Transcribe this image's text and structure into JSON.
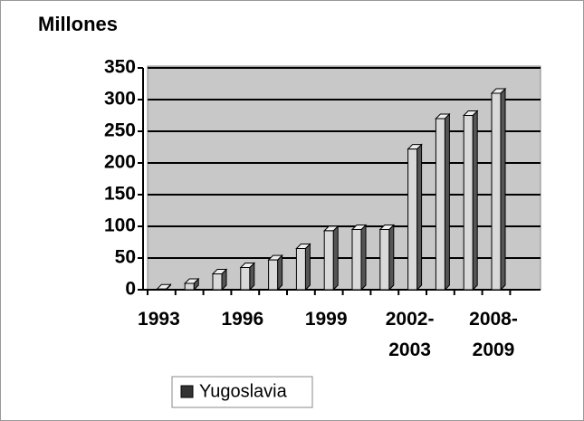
{
  "chart_data": {
    "type": "bar",
    "title": "Millones",
    "categories": [
      "1993",
      null,
      null,
      "1996",
      null,
      null,
      "1999",
      null,
      null,
      "2002-\n2003",
      null,
      null,
      "2008-\n2009"
    ],
    "series": [
      {
        "name": "Yugoslavia",
        "color": "#d9d9d9",
        "values": [
          1,
          10,
          25,
          35,
          47,
          65,
          93,
          95,
          95,
          222,
          270,
          275,
          310
        ]
      }
    ],
    "ylim": [
      0,
      350
    ],
    "yticks": [
      0,
      50,
      100,
      150,
      200,
      250,
      300,
      350
    ],
    "grid": true
  }
}
